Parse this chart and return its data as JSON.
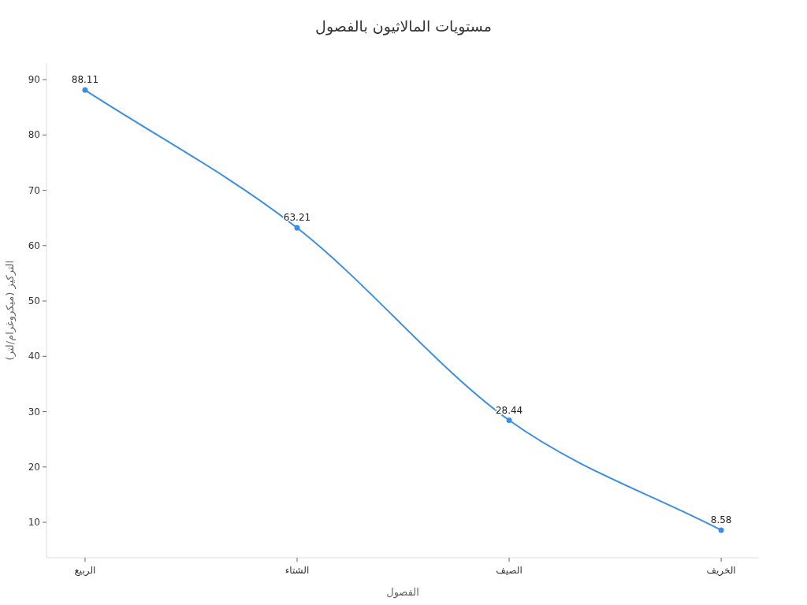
{
  "chart_data": {
    "type": "line",
    "title": "مستويات المالاثيون بالفصول",
    "xlabel": "الفصول",
    "ylabel": "التركيز (ميكروغرام/لتر)",
    "categories": [
      "الربيع",
      "الشتاء",
      "الصيف",
      "الخريف"
    ],
    "values": [
      88.11,
      63.21,
      28.44,
      8.58
    ],
    "color": "#3a8fe3",
    "ylim": [
      3.6,
      93
    ],
    "yticks": [
      10,
      20,
      30,
      40,
      50,
      60,
      70,
      80,
      90
    ],
    "marker": "circle",
    "line_style": "solid",
    "data_labels": true
  }
}
